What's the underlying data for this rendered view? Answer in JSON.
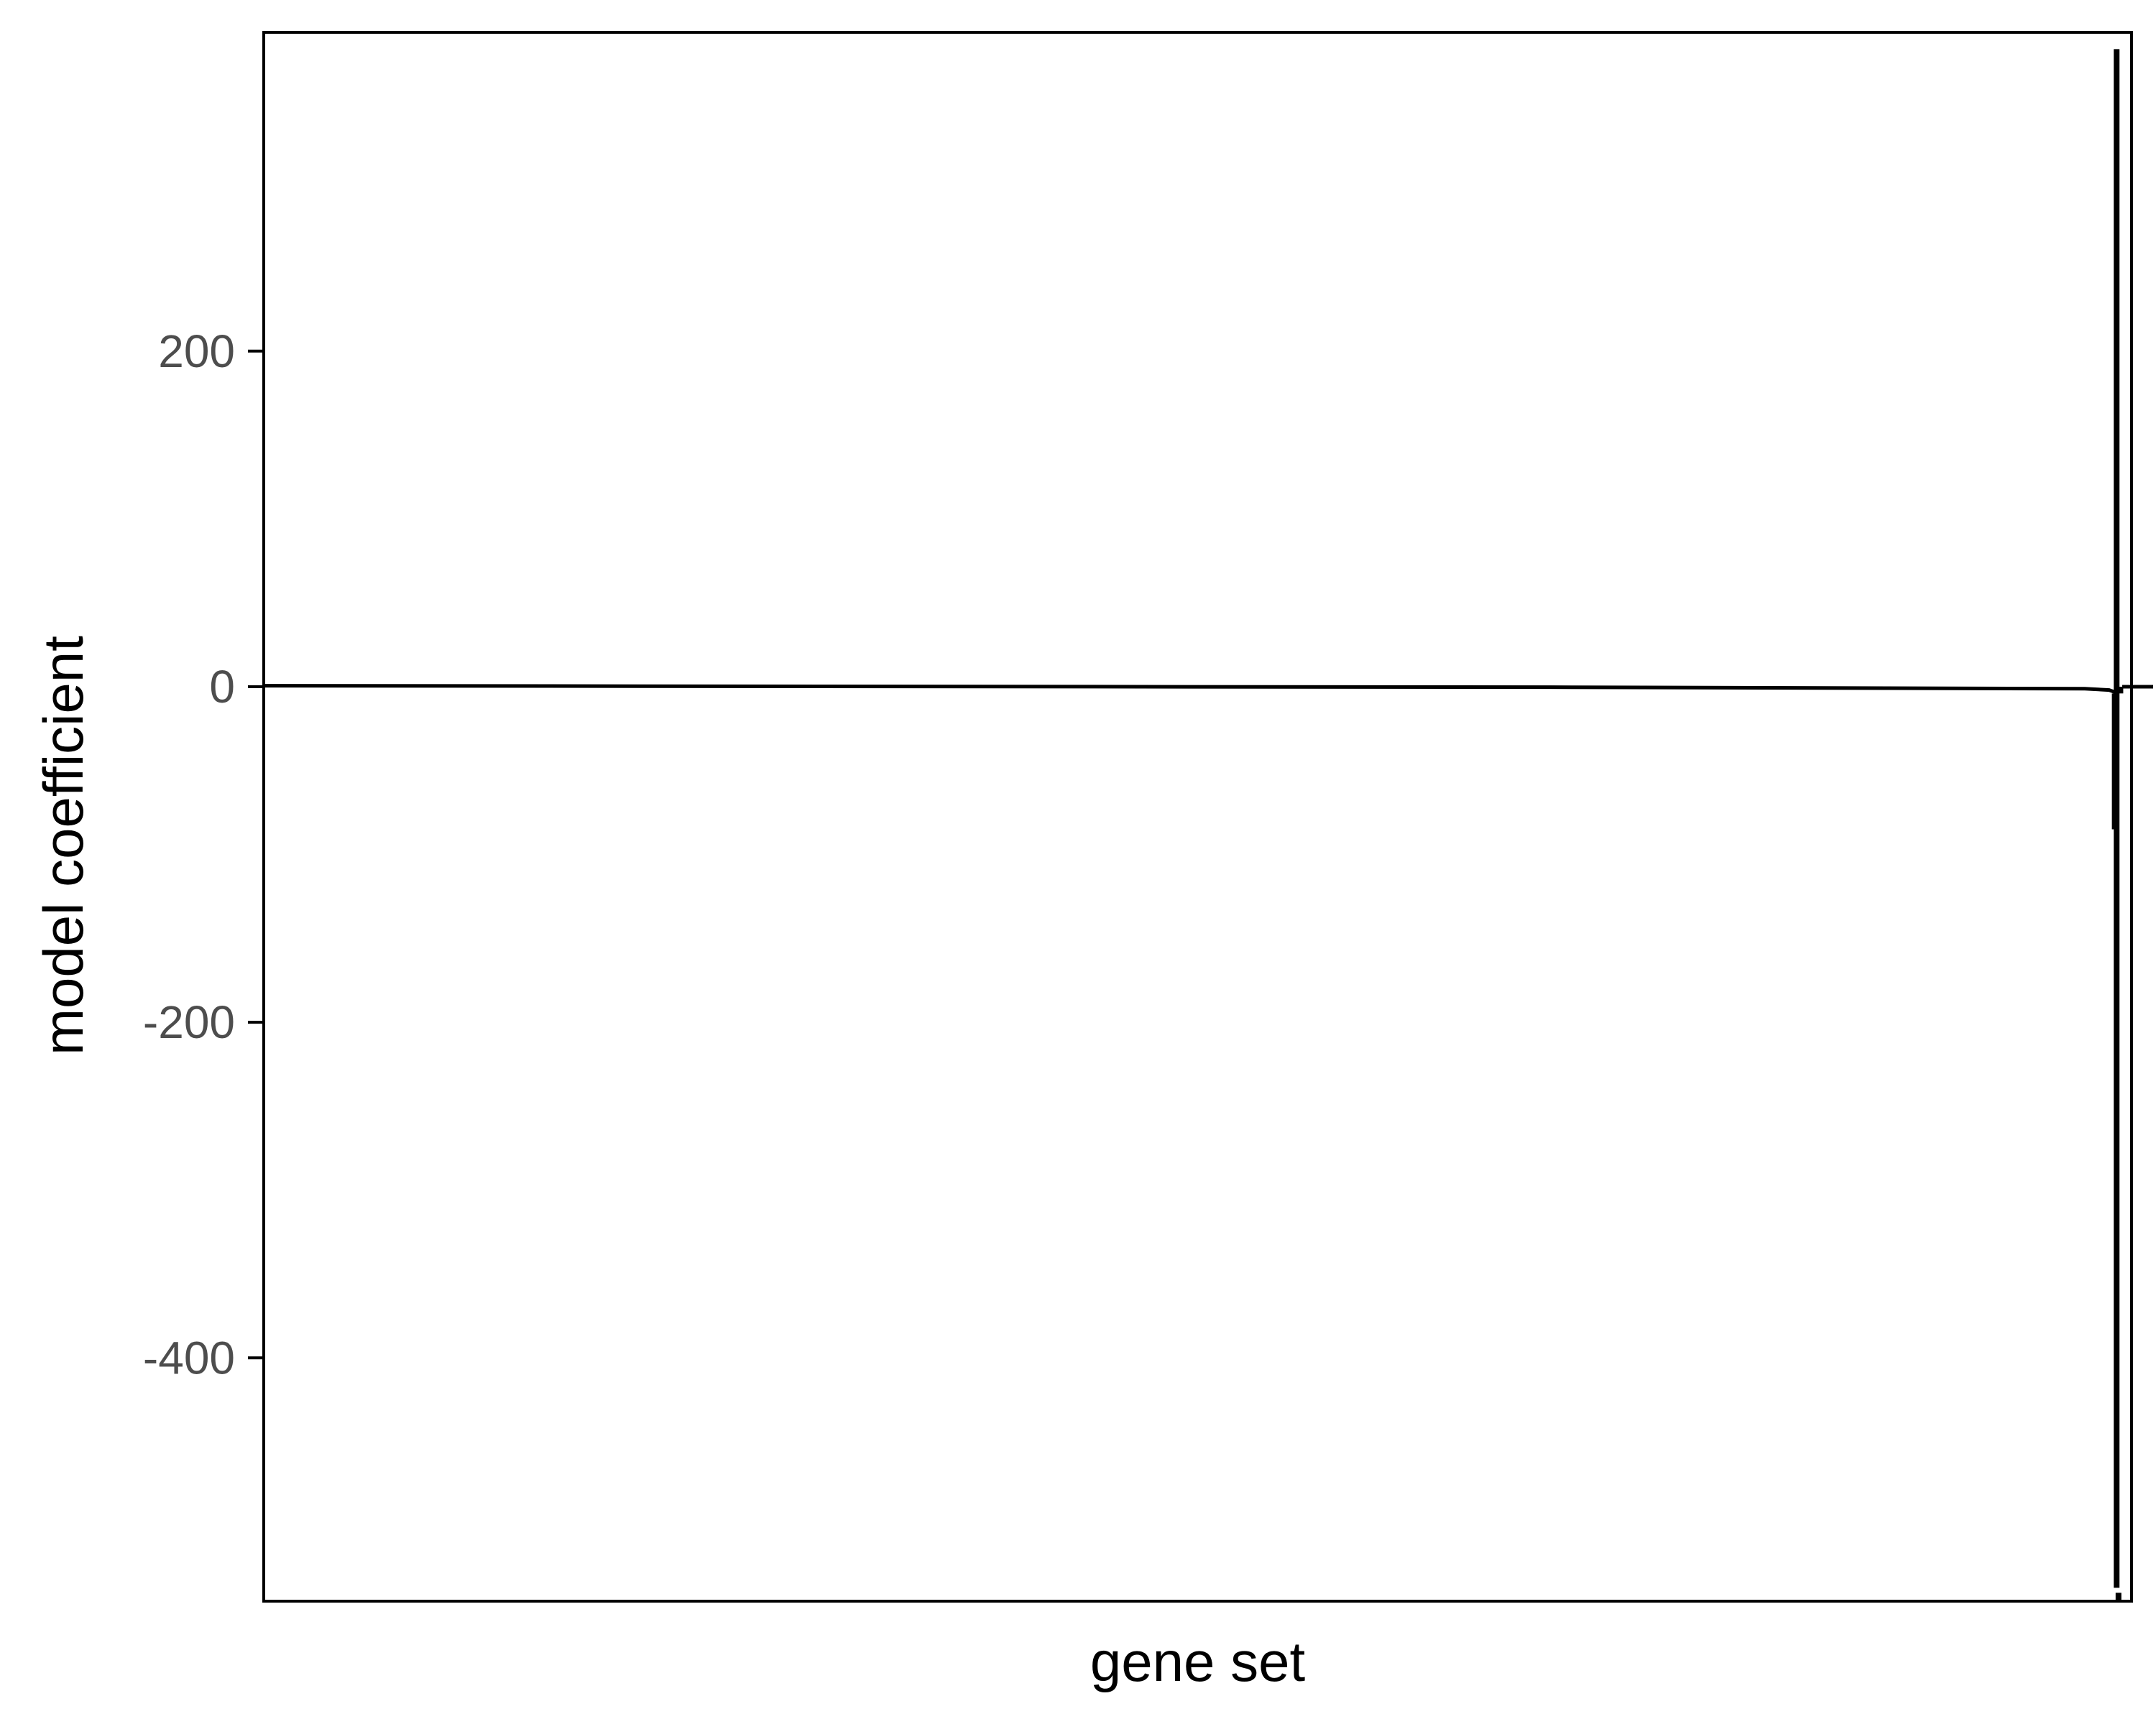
{
  "chart_data": {
    "type": "line",
    "title": "",
    "xlabel": "gene set",
    "ylabel": "model coefficient",
    "ylim": [
      -545,
      390
    ],
    "y_ticks": [
      200,
      0,
      -200,
      -400
    ],
    "y_tick_labels": [
      "200",
      "0",
      "-200",
      "-400"
    ],
    "x_ticks": [],
    "grid": false,
    "legend": "none",
    "colors": {
      "line": "#000000",
      "frame": "#000000",
      "tick_text": "#4d4d4d"
    },
    "n_points": 1000,
    "baseline": {
      "x_start": 0,
      "x_end": 1000,
      "y": [
        [
          0,
          0.6
        ],
        [
          300,
          0.2
        ],
        [
          700,
          -0.3
        ],
        [
          975,
          -1.2
        ],
        [
          988,
          -2.0
        ],
        [
          993,
          -4.0
        ]
      ]
    },
    "spike_segments": [
      {
        "x": 991,
        "y_from": -4,
        "y_to": -85
      },
      {
        "x": 992,
        "y_from": 380,
        "y_to": -537
      },
      {
        "x": 993,
        "y_from": -540,
        "y_to": -545
      },
      {
        "x": 994,
        "y_from": -4,
        "y_to": 0
      }
    ]
  }
}
